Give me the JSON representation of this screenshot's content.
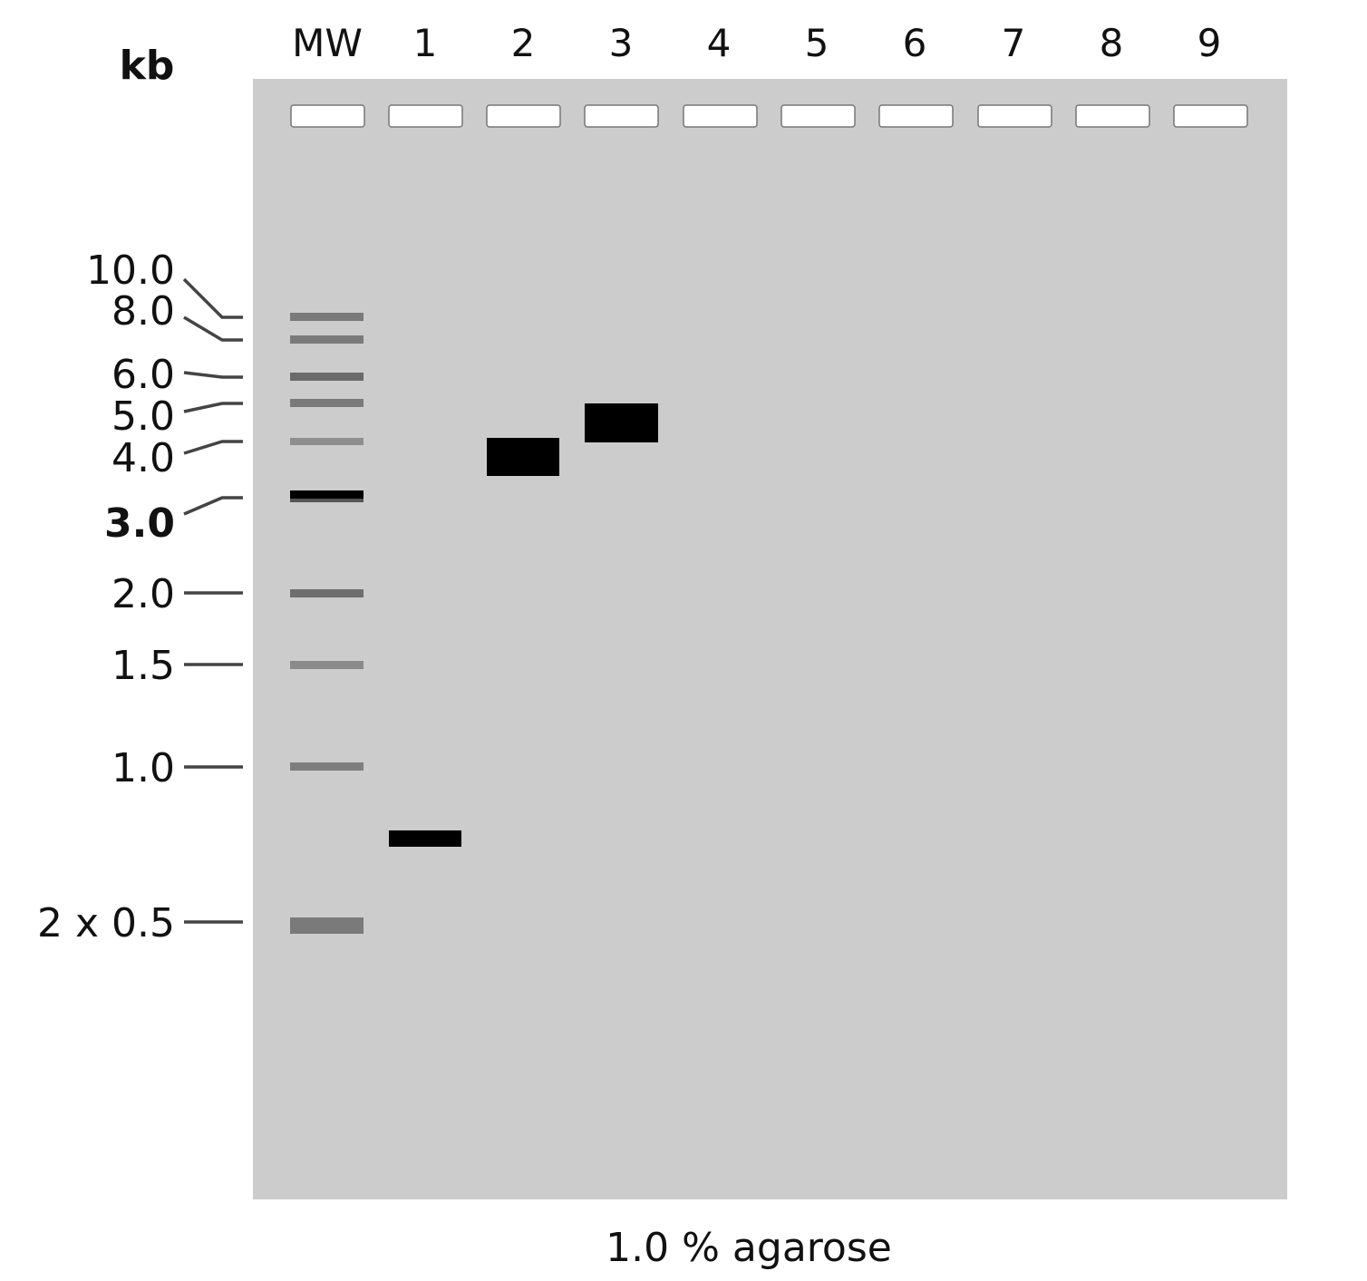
{
  "unit_label": "kb",
  "caption": "1.0 % agarose",
  "colors": {
    "gel_background": "#cccccc",
    "well_fill": "#ffffff",
    "leader_line": "#444444",
    "sample_band": "#000000"
  },
  "lanes": [
    "MW",
    "1",
    "2",
    "3",
    "4",
    "5",
    "6",
    "7",
    "8",
    "9"
  ],
  "chart_data": {
    "type": "gel_electrophoresis",
    "title": "",
    "caption": "1.0 % agarose",
    "y_unit": "kb",
    "lanes": [
      "MW",
      "1",
      "2",
      "3",
      "4",
      "5",
      "6",
      "7",
      "8",
      "9"
    ],
    "ladder": {
      "lane": "MW",
      "labels": [
        {
          "text": "10.0",
          "bold": false
        },
        {
          "text": "8.0",
          "bold": false
        },
        {
          "text": "6.0",
          "bold": false
        },
        {
          "text": "5.0",
          "bold": false
        },
        {
          "text": "4.0",
          "bold": false
        },
        {
          "text": "3.0",
          "bold": true
        },
        {
          "text": "2.0",
          "bold": false
        },
        {
          "text": "1.5",
          "bold": false
        },
        {
          "text": "1.0",
          "bold": false
        },
        {
          "text": "2 x 0.5",
          "bold": false
        }
      ],
      "bands": [
        {
          "size_kb": 10.0,
          "intensity": 0.45
        },
        {
          "size_kb": 8.0,
          "intensity": 0.45
        },
        {
          "size_kb": 6.0,
          "intensity": 0.55
        },
        {
          "size_kb": 5.0,
          "intensity": 0.45
        },
        {
          "size_kb": 4.0,
          "intensity": 0.35
        },
        {
          "size_kb": 3.0,
          "intensity": 1.0,
          "emphasized": true
        },
        {
          "size_kb": 2.0,
          "intensity": 0.5
        },
        {
          "size_kb": 1.5,
          "intensity": 0.35
        },
        {
          "size_kb": 1.0,
          "intensity": 0.42
        },
        {
          "size_kb": 0.5,
          "intensity": 0.45,
          "doublet": true
        }
      ]
    },
    "sample_bands": [
      {
        "lane": "1",
        "size_kb": 0.75,
        "amount": "low"
      },
      {
        "lane": "2",
        "size_kb": 3.9,
        "amount": "high"
      },
      {
        "lane": "3",
        "size_kb": 4.6,
        "amount": "high"
      }
    ]
  }
}
